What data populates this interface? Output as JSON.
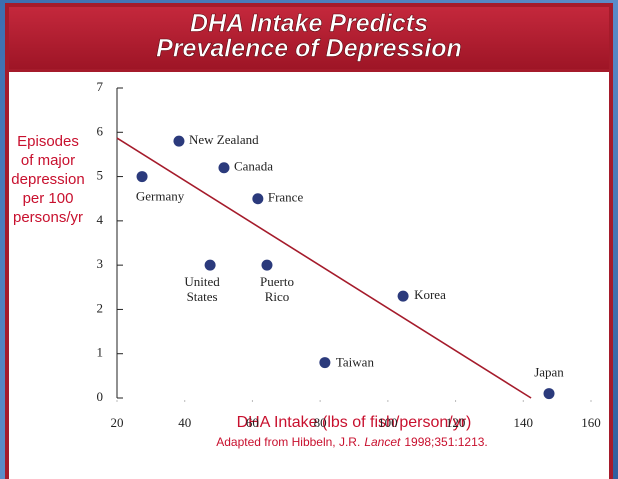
{
  "chart_data": {
    "type": "scatter",
    "title": [
      "DHA Intake Predicts",
      "Prevalence of Depression"
    ],
    "ylabel": [
      "Episodes",
      "of major",
      "depression",
      "per 100",
      "persons/yr"
    ],
    "xlabel": "DHA Intake (lbs of fish/person/yr)",
    "source": [
      "Adapted from Hibbeln, J.R.",
      "Lancet",
      "1998;351:1213."
    ],
    "categories": [
      [
        "Germany"
      ],
      [
        "New Zealand"
      ],
      [
        "Canada"
      ],
      [
        "France"
      ],
      [
        "United",
        "States"
      ],
      [
        "Puerto",
        "Rico"
      ],
      [
        "Korea"
      ],
      [
        "Taiwan"
      ],
      [
        "Japan"
      ]
    ],
    "x": [
      27.4,
      38.3,
      51.6,
      61.6,
      47.5,
      64.3,
      104.5,
      81.4,
      147.6
    ],
    "values": [
      5.0,
      5.8,
      5.2,
      4.5,
      3.0,
      3.0,
      2.3,
      0.8,
      0.1
    ],
    "color": "#2b3a7c",
    "trendline": {
      "x": [
        20,
        142.3
      ],
      "y": [
        5.87,
        0
      ],
      "color": "#a51b2b"
    },
    "xlim": [
      20,
      160
    ],
    "ylim": [
      0,
      7
    ],
    "xticks": [
      20,
      40,
      60,
      80,
      100,
      120,
      140,
      160
    ],
    "yticks": [
      0,
      1,
      2,
      3,
      4,
      5,
      6,
      7
    ]
  }
}
